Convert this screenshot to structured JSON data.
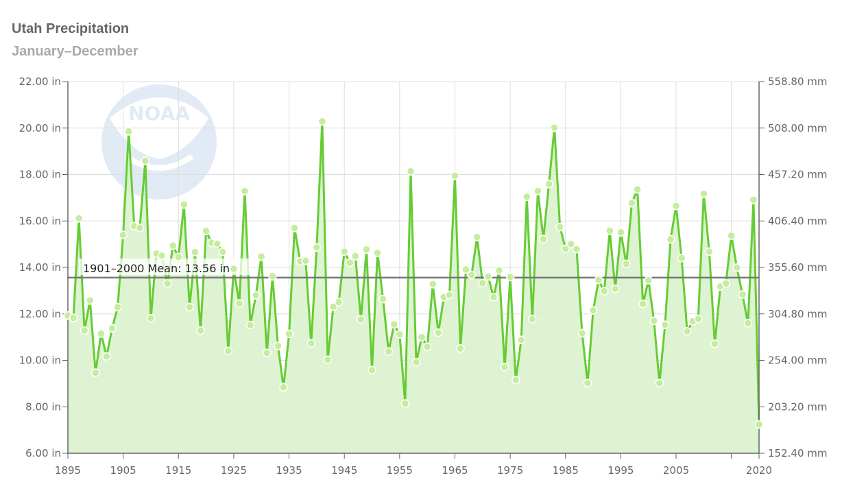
{
  "header": {
    "title": "Utah Precipitation",
    "subtitle": "January–December"
  },
  "colors": {
    "series_line": "#66cc33",
    "series_fill": "#d9f2cc",
    "marker_fill": "#c6ec9e",
    "mean_line": "#777777",
    "grid": "#dddddd",
    "axis": "#666666"
  },
  "logo": {
    "name": "noaa-logo",
    "text": "NOAA",
    "opacity": "faint watermark"
  },
  "chart_data": {
    "type": "area",
    "title": "Utah Precipitation",
    "subtitle": "January–December",
    "xlabel": "",
    "ylabel": "",
    "xlim": [
      1895,
      2020
    ],
    "ylim": [
      6,
      22
    ],
    "grid": true,
    "legend": "none",
    "x_ticks": [
      1895,
      1905,
      1915,
      1925,
      1935,
      1945,
      1955,
      1965,
      1975,
      1985,
      1995,
      2005,
      2020
    ],
    "x_ticks_unlabeled": [
      2015
    ],
    "y_ticks_left": [
      "6.00 in",
      "8.00 in",
      "10.00 in",
      "12.00 in",
      "14.00 in",
      "16.00 in",
      "18.00 in",
      "20.00 in",
      "22.00 in"
    ],
    "y_ticks_right": [
      "152.40 mm",
      "203.20 mm",
      "254.00 mm",
      "304.80 mm",
      "355.60 mm",
      "406.40 mm",
      "457.20 mm",
      "508.00 mm",
      "558.80 mm"
    ],
    "reference_line": {
      "label": "1901–2000 Mean: 13.56 in",
      "value": 13.56
    },
    "series": [
      {
        "x": [
          1895,
          1896,
          1897,
          1898,
          1899,
          1900,
          1901,
          1902,
          1903,
          1904,
          1905,
          1906,
          1907,
          1908,
          1909,
          1910,
          1911,
          1912,
          1913,
          1914,
          1915,
          1916,
          1917,
          1918,
          1919,
          1920,
          1921,
          1922,
          1923,
          1924,
          1925,
          1926,
          1927,
          1928,
          1929,
          1930,
          1931,
          1932,
          1933,
          1934,
          1935,
          1936,
          1937,
          1938,
          1939,
          1940,
          1941,
          1942,
          1943,
          1944,
          1945,
          1946,
          1947,
          1948,
          1949,
          1950,
          1951,
          1952,
          1953,
          1954,
          1955,
          1956,
          1957,
          1958,
          1959,
          1960,
          1961,
          1962,
          1963,
          1964,
          1965,
          1966,
          1967,
          1968,
          1969,
          1970,
          1971,
          1972,
          1973,
          1974,
          1975,
          1976,
          1977,
          1978,
          1979,
          1980,
          1981,
          1982,
          1983,
          1984,
          1985,
          1986,
          1987,
          1988,
          1989,
          1990,
          1991,
          1992,
          1993,
          1994,
          1995,
          1996,
          1997,
          1998,
          1999,
          2000,
          2001,
          2002,
          2003,
          2004,
          2005,
          2006,
          2007,
          2008,
          2009,
          2010,
          2011,
          2012,
          2013,
          2014,
          2015,
          2016,
          2017,
          2018,
          2019,
          2020
        ],
        "values": [
          11.93,
          11.83,
          16.11,
          11.28,
          12.58,
          9.47,
          11.15,
          10.17,
          11.38,
          12.29,
          15.4,
          19.86,
          15.78,
          15.7,
          18.59,
          11.81,
          14.6,
          14.51,
          13.31,
          14.94,
          14.45,
          16.71,
          12.29,
          14.66,
          11.28,
          15.57,
          15.06,
          15.02,
          14.67,
          10.4,
          13.94,
          12.45,
          17.29,
          11.52,
          12.8,
          14.47,
          10.32,
          13.62,
          10.62,
          8.84,
          11.14,
          15.7,
          14.27,
          14.29,
          10.73,
          14.86,
          20.29,
          10.02,
          12.31,
          12.51,
          14.68,
          14.2,
          14.49,
          11.76,
          14.77,
          9.58,
          14.63,
          12.64,
          10.38,
          11.55,
          11.12,
          8.14,
          18.14,
          9.92,
          11.0,
          10.59,
          13.28,
          11.19,
          12.72,
          12.81,
          17.95,
          10.51,
          13.91,
          13.67,
          15.31,
          13.32,
          13.61,
          12.72,
          13.87,
          9.71,
          13.59,
          9.15,
          10.88,
          17.04,
          11.77,
          17.29,
          15.22,
          17.59,
          20.02,
          15.74,
          14.8,
          15.01,
          14.79,
          11.17,
          9.02,
          12.15,
          13.47,
          12.98,
          15.58,
          13.08,
          15.51,
          14.15,
          16.77,
          17.36,
          12.43,
          13.45,
          11.7,
          9.02,
          11.53,
          15.21,
          16.65,
          14.4,
          11.25,
          11.68,
          11.78,
          17.17,
          14.68,
          10.71,
          13.18,
          13.31,
          15.37,
          13.99,
          12.83,
          11.6,
          16.91,
          7.24
        ]
      }
    ]
  }
}
